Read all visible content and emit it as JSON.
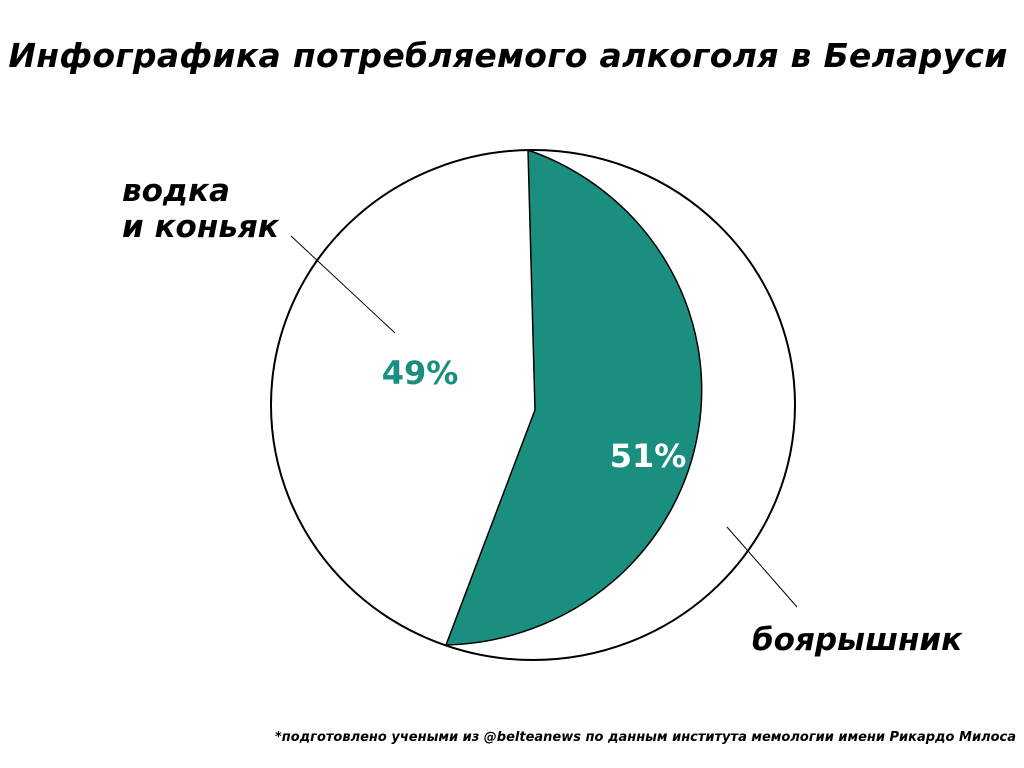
{
  "title": "Инфографика потребляемого алкоголя в Беларуси",
  "footnote": "*подготовлено учеными из @belteanews по данным института мемологии имени Рикардо Милоса",
  "colors": {
    "accent": "#1a8f80",
    "background": "#ffffff",
    "outline": "#000000",
    "text": "#000000"
  },
  "chart_data": {
    "type": "pie",
    "slices": [
      {
        "label_lines": [
          "водка",
          "и коньяк"
        ],
        "value": 49,
        "value_label": "49%",
        "fill": "#ffffff",
        "value_label_color": "#1a8f80"
      },
      {
        "label_lines": [
          "боярышник"
        ],
        "value": 51,
        "value_label": "51%",
        "fill": "#1a8f80",
        "value_label_color": "#ffffff"
      }
    ]
  }
}
